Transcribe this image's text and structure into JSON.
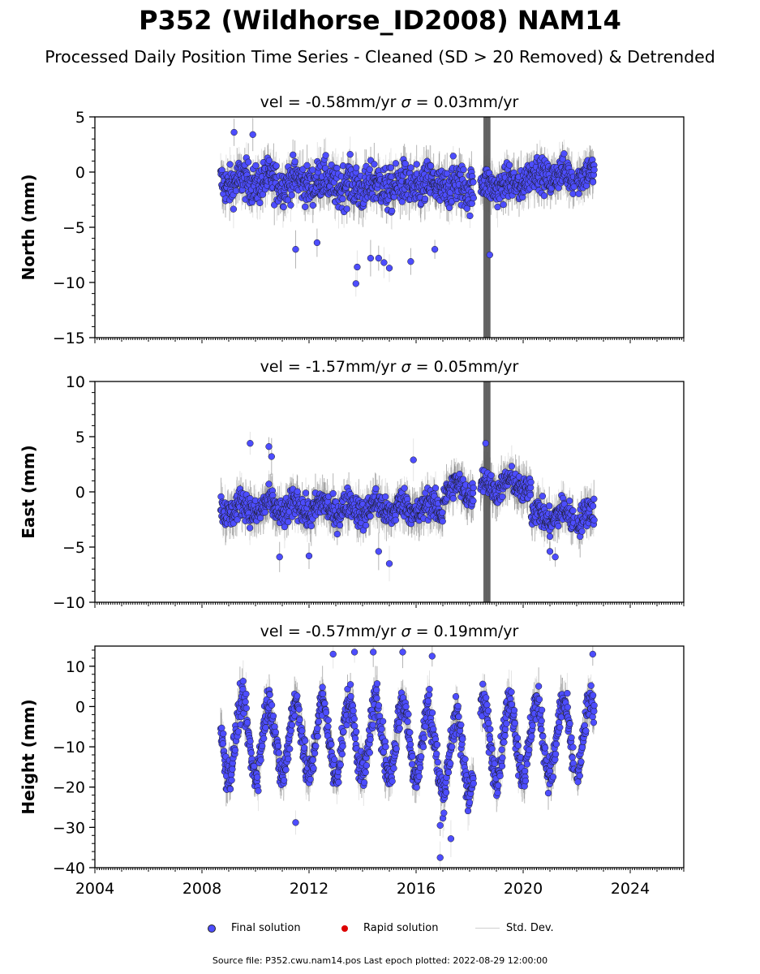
{
  "chart_data": [
    {
      "type": "scatter",
      "title": "vel = -0.58mm/yr   σ = 0.03mm/yr",
      "vel_text": "vel = -0.58mm/yr",
      "sigma_symbol": "σ",
      "sigma_text": " = 0.03mm/yr",
      "ylabel": "North (mm)",
      "xlim": [
        2004,
        2026
      ],
      "ylim": [
        -15,
        5
      ],
      "yticks": [
        -15,
        -10,
        -5,
        0,
        5
      ],
      "ytick_labels": [
        "−15",
        "−10",
        "−5",
        "0",
        "5"
      ],
      "data_start": 2008.7,
      "data_end": 2022.66,
      "gaps": [
        [
          2018.15,
          2018.4
        ],
        [
          2021.9,
          2022.0
        ]
      ],
      "segments": [
        {
          "from": 2008.7,
          "to": 2013.0,
          "mean": -0.9,
          "spread": 1.6
        },
        {
          "from": 2013.0,
          "to": 2018.15,
          "mean": -1.3,
          "spread": 1.8
        },
        {
          "from": 2018.4,
          "to": 2020.0,
          "mean": -1.2,
          "spread": 1.4
        },
        {
          "from": 2020.0,
          "to": 2022.66,
          "mean": -0.3,
          "spread": 1.3
        }
      ],
      "seasonal_amplitude": 0.4,
      "outliers": [
        [
          2009.2,
          3.6
        ],
        [
          2009.9,
          3.4
        ],
        [
          2013.75,
          -10.1
        ],
        [
          2013.8,
          -8.6
        ],
        [
          2014.3,
          -7.8
        ],
        [
          2014.6,
          -7.8
        ],
        [
          2014.8,
          -8.2
        ],
        [
          2015.0,
          -8.7
        ],
        [
          2015.8,
          -8.1
        ],
        [
          2016.7,
          -7.0
        ],
        [
          2018.75,
          -7.5
        ],
        [
          2011.5,
          -7.0
        ],
        [
          2012.3,
          -6.4
        ]
      ],
      "noise_band": {
        "x": 2018.65,
        "low": -15,
        "high": 5
      }
    },
    {
      "type": "scatter",
      "title": "vel = -1.57mm/yr   σ = 0.05mm/yr",
      "vel_text": "vel = -1.57mm/yr",
      "sigma_symbol": "σ",
      "sigma_text": " = 0.05mm/yr",
      "ylabel": "East (mm)",
      "xlim": [
        2004,
        2026
      ],
      "ylim": [
        -10,
        10
      ],
      "yticks": [
        -10,
        -5,
        0,
        5,
        10
      ],
      "ytick_labels": [
        "−10",
        "−5",
        "0",
        "5",
        "10"
      ],
      "data_start": 2008.7,
      "data_end": 2022.66,
      "gaps": [
        [
          2018.15,
          2018.4
        ],
        [
          2021.9,
          2022.0
        ]
      ],
      "segments": [
        {
          "from": 2008.7,
          "to": 2017.0,
          "mean": -1.5,
          "spread": 1.2
        },
        {
          "from": 2017.0,
          "to": 2018.15,
          "mean": 0.2,
          "spread": 1.1
        },
        {
          "from": 2018.4,
          "to": 2020.3,
          "mean": 0.6,
          "spread": 1.0
        },
        {
          "from": 2020.3,
          "to": 2022.66,
          "mean": -2.2,
          "spread": 1.2
        }
      ],
      "seasonal_amplitude": 0.6,
      "outliers": [
        [
          2009.8,
          4.4
        ],
        [
          2010.5,
          4.1
        ],
        [
          2010.6,
          3.2
        ],
        [
          2015.9,
          2.9
        ],
        [
          2018.6,
          4.4
        ],
        [
          2010.9,
          -5.9
        ],
        [
          2012.0,
          -5.8
        ],
        [
          2015.0,
          -6.5
        ],
        [
          2014.6,
          -5.4
        ],
        [
          2021.2,
          -5.9
        ],
        [
          2021.0,
          -5.4
        ]
      ],
      "noise_band": {
        "x": 2018.65,
        "low": -10,
        "high": 10
      }
    },
    {
      "type": "scatter",
      "title": "vel = -0.57mm/yr   σ = 0.19mm/yr",
      "vel_text": "vel = -0.57mm/yr",
      "sigma_symbol": "σ",
      "sigma_text": " = 0.19mm/yr",
      "ylabel": "Height (mm)",
      "xlim": [
        2004,
        2026
      ],
      "ylim": [
        -40,
        15
      ],
      "yticks": [
        -40,
        -30,
        -20,
        -10,
        0,
        10
      ],
      "ytick_labels": [
        "−40",
        "−30",
        "−20",
        "−10",
        "0",
        "10"
      ],
      "xticks": [
        2004,
        2008,
        2012,
        2016,
        2020,
        2024
      ],
      "xtick_labels": [
        "2004",
        "2008",
        "2012",
        "2016",
        "2020",
        "2024"
      ],
      "data_start": 2008.7,
      "data_end": 2022.66,
      "gaps": [
        [
          2018.15,
          2018.4
        ],
        [
          2021.9,
          2022.0
        ]
      ],
      "segments": [
        {
          "from": 2008.7,
          "to": 2016.5,
          "mean": -8.0,
          "spread": 4.0
        },
        {
          "from": 2016.5,
          "to": 2018.15,
          "mean": -12.0,
          "spread": 4.5
        },
        {
          "from": 2018.4,
          "to": 2022.66,
          "mean": -8.0,
          "spread": 4.0
        }
      ],
      "seasonal_amplitude": 9.0,
      "outliers": [
        [
          2016.9,
          -37.5
        ],
        [
          2017.3,
          -32.8
        ],
        [
          2016.9,
          -29.5
        ],
        [
          2011.5,
          -28.8
        ],
        [
          2015.5,
          13.5
        ],
        [
          2013.7,
          13.5
        ],
        [
          2014.4,
          13.5
        ],
        [
          2022.6,
          13.0
        ],
        [
          2012.9,
          13.0
        ],
        [
          2016.6,
          12.5
        ]
      ],
      "noise_band": null
    }
  ],
  "header": {
    "title": "P352 (Wildhorse_ID2008) NAM14",
    "subtitle": "Processed Daily Position Time Series - Cleaned (SD > 20 Removed) & Detrended"
  },
  "legend": {
    "final_label": "Final solution",
    "rapid_label": "Rapid solution",
    "std_label": "Std. Dev.",
    "final_color": "#4d4dff",
    "rapid_color": "#dd0000",
    "std_color": "#cfcfcf"
  },
  "footer": {
    "source": "Source file: P352.cwu.nam14.pos  Last epoch plotted: 2022-08-29 12:00:00"
  }
}
